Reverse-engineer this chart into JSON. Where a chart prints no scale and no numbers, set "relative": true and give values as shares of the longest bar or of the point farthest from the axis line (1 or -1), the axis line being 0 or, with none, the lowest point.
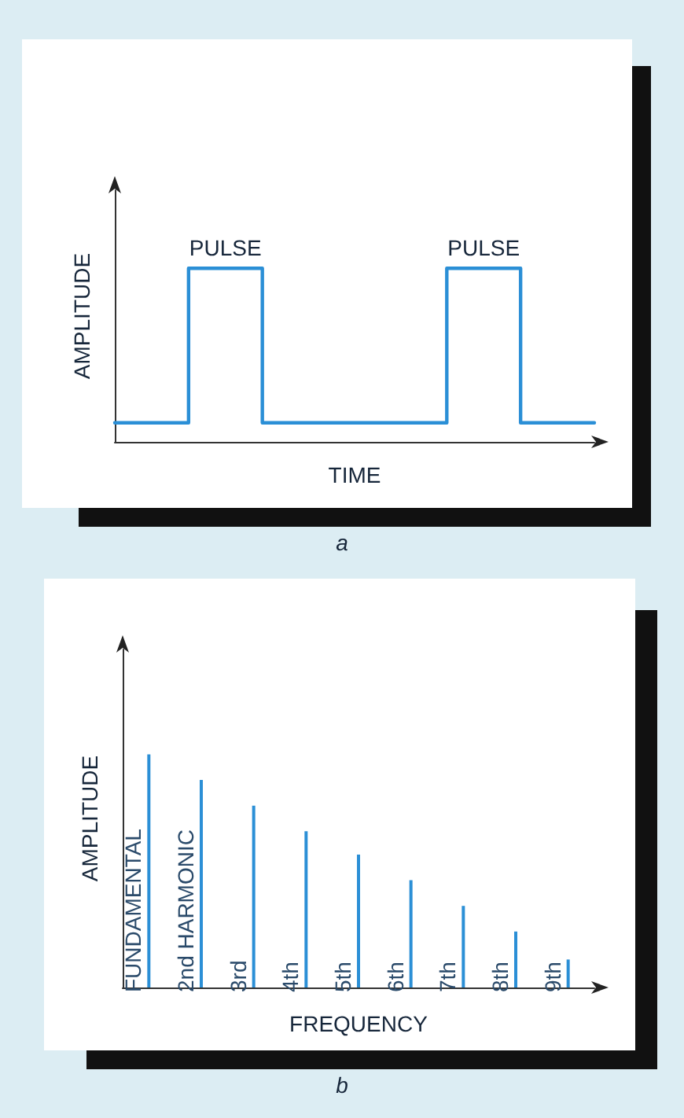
{
  "chart_data": [
    {
      "type": "step",
      "xlabel": "TIME",
      "ylabel": "AMPLITUDE",
      "relative": true,
      "categories": [
        null,
        null,
        null,
        null,
        null,
        null,
        null,
        null,
        null,
        null,
        null,
        null,
        null,
        null
      ],
      "marker": "none",
      "grid": false,
      "series": [
        {
          "color": "#2b8fd6",
          "values": [
            0.11,
            0.11,
            1,
            1,
            0.11,
            0.11,
            0.11,
            0.11,
            0.11,
            1,
            1,
            0.11,
            0.11,
            0.11
          ]
        }
      ],
      "annotations": [
        "PULSE",
        "PULSE",
        "a"
      ]
    },
    {
      "type": "bar",
      "xlabel": "FREQUENCY",
      "ylabel": "AMPLITUDE",
      "relative": true,
      "grid": false,
      "categories": [
        "FUNDAMENTAL",
        "2nd HARMONIC",
        "3rd",
        "4th",
        "5th",
        "6th",
        "7th",
        "8th",
        "9th"
      ],
      "series": [
        {
          "color": "#2b8fd6",
          "values": [
            1,
            0.89,
            0.78,
            0.67,
            0.57,
            0.46,
            0.35,
            0.24,
            0.12
          ]
        }
      ],
      "annotations": [
        "b"
      ]
    }
  ]
}
